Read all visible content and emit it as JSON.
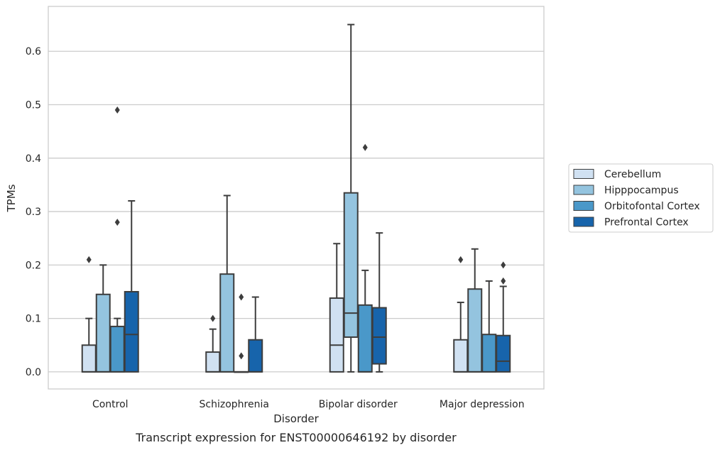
{
  "chart_data": {
    "type": "box",
    "title": "",
    "caption": "Transcript expression for ENST00000646192 by disorder",
    "xlabel": "Disorder",
    "ylabel": "TPMs",
    "ylim": [
      -0.032,
      0.684
    ],
    "yticks": [
      0.0,
      0.1,
      0.2,
      0.3,
      0.4,
      0.5,
      0.6
    ],
    "ytick_labels": [
      "0.0",
      "0.1",
      "0.2",
      "0.3",
      "0.4",
      "0.5",
      "0.6"
    ],
    "grid": "horizontal",
    "legend_position": "outside-right",
    "categories": [
      "Control",
      "Schizophrenia",
      "Bipolar disorder",
      "Major depression"
    ],
    "series": [
      {
        "name": "Cerebellum",
        "color": "#d0e1f2",
        "boxes": [
          {
            "whislo": 0.0,
            "q1": 0.0,
            "med": 0.0,
            "q3": 0.05,
            "whishi": 0.1,
            "fliers": [
              0.21
            ]
          },
          {
            "whislo": 0.0,
            "q1": 0.0,
            "med": 0.0,
            "q3": 0.037,
            "whishi": 0.08,
            "fliers": [
              0.1
            ]
          },
          {
            "whislo": 0.0,
            "q1": 0.0,
            "med": 0.05,
            "q3": 0.138,
            "whishi": 0.24,
            "fliers": []
          },
          {
            "whislo": 0.0,
            "q1": 0.0,
            "med": 0.0,
            "q3": 0.06,
            "whishi": 0.13,
            "fliers": [
              0.21
            ]
          }
        ]
      },
      {
        "name": "Hipppocampus",
        "color": "#94c4df",
        "boxes": [
          {
            "whislo": 0.0,
            "q1": 0.0,
            "med": 0.0,
            "q3": 0.145,
            "whishi": 0.2,
            "fliers": []
          },
          {
            "whislo": 0.0,
            "q1": 0.0,
            "med": 0.0,
            "q3": 0.183,
            "whishi": 0.33,
            "fliers": []
          },
          {
            "whislo": 0.0,
            "q1": 0.065,
            "med": 0.11,
            "q3": 0.335,
            "whishi": 0.65,
            "fliers": []
          },
          {
            "whislo": 0.0,
            "q1": 0.0,
            "med": 0.0,
            "q3": 0.155,
            "whishi": 0.23,
            "fliers": []
          }
        ]
      },
      {
        "name": "Orbitofontal Cortex",
        "color": "#4a98c9",
        "boxes": [
          {
            "whislo": 0.0,
            "q1": 0.0,
            "med": 0.0,
            "q3": 0.085,
            "whishi": 0.1,
            "fliers": [
              0.28,
              0.49
            ]
          },
          {
            "whislo": 0.0,
            "q1": 0.0,
            "med": 0.0,
            "q3": 0.0,
            "whishi": 0.0,
            "fliers": [
              0.03,
              0.14
            ]
          },
          {
            "whislo": 0.0,
            "q1": 0.0,
            "med": 0.0,
            "q3": 0.125,
            "whishi": 0.19,
            "fliers": [
              0.42
            ]
          },
          {
            "whislo": 0.0,
            "q1": 0.0,
            "med": 0.0,
            "q3": 0.07,
            "whishi": 0.17,
            "fliers": []
          }
        ]
      },
      {
        "name": "Prefrontal Cortex",
        "color": "#1764ab",
        "boxes": [
          {
            "whislo": 0.0,
            "q1": 0.0,
            "med": 0.07,
            "q3": 0.15,
            "whishi": 0.32,
            "fliers": []
          },
          {
            "whislo": 0.0,
            "q1": 0.0,
            "med": 0.0,
            "q3": 0.06,
            "whishi": 0.14,
            "fliers": []
          },
          {
            "whislo": 0.0,
            "q1": 0.015,
            "med": 0.065,
            "q3": 0.12,
            "whishi": 0.26,
            "fliers": []
          },
          {
            "whislo": 0.0,
            "q1": 0.0,
            "med": 0.02,
            "q3": 0.068,
            "whishi": 0.16,
            "fliers": [
              0.17,
              0.2
            ]
          }
        ]
      }
    ]
  }
}
